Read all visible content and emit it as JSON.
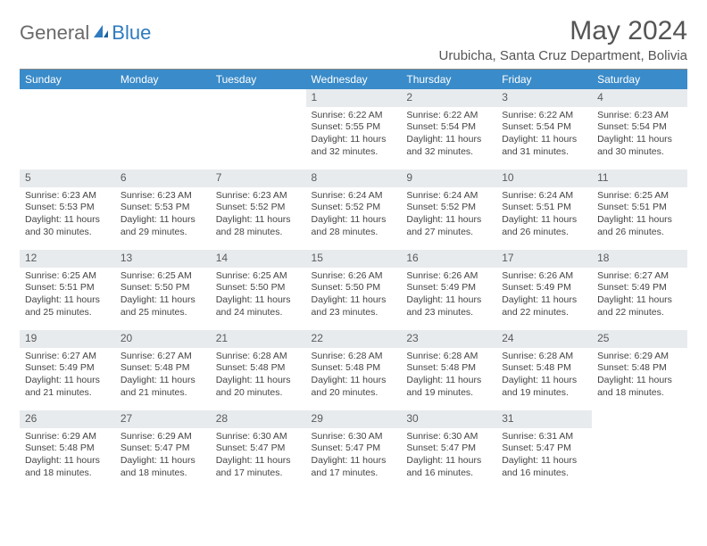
{
  "logo": {
    "text1": "General",
    "text2": "Blue"
  },
  "title": "May 2024",
  "location": "Urubicha, Santa Cruz Department, Bolivia",
  "colors": {
    "header_bg": "#3a8bc9",
    "header_text": "#ffffff",
    "daynum_bg": "#e8ebee",
    "body_bg": "#ffffff",
    "text": "#444444",
    "logo_gray": "#6a6a6a",
    "logo_blue": "#2f7bbf"
  },
  "typography": {
    "title_fontsize": 30,
    "location_fontsize": 15,
    "dayheader_fontsize": 12,
    "body_fontsize": 10.5
  },
  "day_headers": [
    "Sunday",
    "Monday",
    "Tuesday",
    "Wednesday",
    "Thursday",
    "Friday",
    "Saturday"
  ],
  "weeks": [
    [
      {
        "n": "",
        "sunrise": "",
        "sunset": "",
        "daylight": ""
      },
      {
        "n": "",
        "sunrise": "",
        "sunset": "",
        "daylight": ""
      },
      {
        "n": "",
        "sunrise": "",
        "sunset": "",
        "daylight": ""
      },
      {
        "n": "1",
        "sunrise": "Sunrise: 6:22 AM",
        "sunset": "Sunset: 5:55 PM",
        "daylight": "Daylight: 11 hours and 32 minutes."
      },
      {
        "n": "2",
        "sunrise": "Sunrise: 6:22 AM",
        "sunset": "Sunset: 5:54 PM",
        "daylight": "Daylight: 11 hours and 32 minutes."
      },
      {
        "n": "3",
        "sunrise": "Sunrise: 6:22 AM",
        "sunset": "Sunset: 5:54 PM",
        "daylight": "Daylight: 11 hours and 31 minutes."
      },
      {
        "n": "4",
        "sunrise": "Sunrise: 6:23 AM",
        "sunset": "Sunset: 5:54 PM",
        "daylight": "Daylight: 11 hours and 30 minutes."
      }
    ],
    [
      {
        "n": "5",
        "sunrise": "Sunrise: 6:23 AM",
        "sunset": "Sunset: 5:53 PM",
        "daylight": "Daylight: 11 hours and 30 minutes."
      },
      {
        "n": "6",
        "sunrise": "Sunrise: 6:23 AM",
        "sunset": "Sunset: 5:53 PM",
        "daylight": "Daylight: 11 hours and 29 minutes."
      },
      {
        "n": "7",
        "sunrise": "Sunrise: 6:23 AM",
        "sunset": "Sunset: 5:52 PM",
        "daylight": "Daylight: 11 hours and 28 minutes."
      },
      {
        "n": "8",
        "sunrise": "Sunrise: 6:24 AM",
        "sunset": "Sunset: 5:52 PM",
        "daylight": "Daylight: 11 hours and 28 minutes."
      },
      {
        "n": "9",
        "sunrise": "Sunrise: 6:24 AM",
        "sunset": "Sunset: 5:52 PM",
        "daylight": "Daylight: 11 hours and 27 minutes."
      },
      {
        "n": "10",
        "sunrise": "Sunrise: 6:24 AM",
        "sunset": "Sunset: 5:51 PM",
        "daylight": "Daylight: 11 hours and 26 minutes."
      },
      {
        "n": "11",
        "sunrise": "Sunrise: 6:25 AM",
        "sunset": "Sunset: 5:51 PM",
        "daylight": "Daylight: 11 hours and 26 minutes."
      }
    ],
    [
      {
        "n": "12",
        "sunrise": "Sunrise: 6:25 AM",
        "sunset": "Sunset: 5:51 PM",
        "daylight": "Daylight: 11 hours and 25 minutes."
      },
      {
        "n": "13",
        "sunrise": "Sunrise: 6:25 AM",
        "sunset": "Sunset: 5:50 PM",
        "daylight": "Daylight: 11 hours and 25 minutes."
      },
      {
        "n": "14",
        "sunrise": "Sunrise: 6:25 AM",
        "sunset": "Sunset: 5:50 PM",
        "daylight": "Daylight: 11 hours and 24 minutes."
      },
      {
        "n": "15",
        "sunrise": "Sunrise: 6:26 AM",
        "sunset": "Sunset: 5:50 PM",
        "daylight": "Daylight: 11 hours and 23 minutes."
      },
      {
        "n": "16",
        "sunrise": "Sunrise: 6:26 AM",
        "sunset": "Sunset: 5:49 PM",
        "daylight": "Daylight: 11 hours and 23 minutes."
      },
      {
        "n": "17",
        "sunrise": "Sunrise: 6:26 AM",
        "sunset": "Sunset: 5:49 PM",
        "daylight": "Daylight: 11 hours and 22 minutes."
      },
      {
        "n": "18",
        "sunrise": "Sunrise: 6:27 AM",
        "sunset": "Sunset: 5:49 PM",
        "daylight": "Daylight: 11 hours and 22 minutes."
      }
    ],
    [
      {
        "n": "19",
        "sunrise": "Sunrise: 6:27 AM",
        "sunset": "Sunset: 5:49 PM",
        "daylight": "Daylight: 11 hours and 21 minutes."
      },
      {
        "n": "20",
        "sunrise": "Sunrise: 6:27 AM",
        "sunset": "Sunset: 5:48 PM",
        "daylight": "Daylight: 11 hours and 21 minutes."
      },
      {
        "n": "21",
        "sunrise": "Sunrise: 6:28 AM",
        "sunset": "Sunset: 5:48 PM",
        "daylight": "Daylight: 11 hours and 20 minutes."
      },
      {
        "n": "22",
        "sunrise": "Sunrise: 6:28 AM",
        "sunset": "Sunset: 5:48 PM",
        "daylight": "Daylight: 11 hours and 20 minutes."
      },
      {
        "n": "23",
        "sunrise": "Sunrise: 6:28 AM",
        "sunset": "Sunset: 5:48 PM",
        "daylight": "Daylight: 11 hours and 19 minutes."
      },
      {
        "n": "24",
        "sunrise": "Sunrise: 6:28 AM",
        "sunset": "Sunset: 5:48 PM",
        "daylight": "Daylight: 11 hours and 19 minutes."
      },
      {
        "n": "25",
        "sunrise": "Sunrise: 6:29 AM",
        "sunset": "Sunset: 5:48 PM",
        "daylight": "Daylight: 11 hours and 18 minutes."
      }
    ],
    [
      {
        "n": "26",
        "sunrise": "Sunrise: 6:29 AM",
        "sunset": "Sunset: 5:48 PM",
        "daylight": "Daylight: 11 hours and 18 minutes."
      },
      {
        "n": "27",
        "sunrise": "Sunrise: 6:29 AM",
        "sunset": "Sunset: 5:47 PM",
        "daylight": "Daylight: 11 hours and 18 minutes."
      },
      {
        "n": "28",
        "sunrise": "Sunrise: 6:30 AM",
        "sunset": "Sunset: 5:47 PM",
        "daylight": "Daylight: 11 hours and 17 minutes."
      },
      {
        "n": "29",
        "sunrise": "Sunrise: 6:30 AM",
        "sunset": "Sunset: 5:47 PM",
        "daylight": "Daylight: 11 hours and 17 minutes."
      },
      {
        "n": "30",
        "sunrise": "Sunrise: 6:30 AM",
        "sunset": "Sunset: 5:47 PM",
        "daylight": "Daylight: 11 hours and 16 minutes."
      },
      {
        "n": "31",
        "sunrise": "Sunrise: 6:31 AM",
        "sunset": "Sunset: 5:47 PM",
        "daylight": "Daylight: 11 hours and 16 minutes."
      },
      {
        "n": "",
        "sunrise": "",
        "sunset": "",
        "daylight": ""
      }
    ]
  ]
}
